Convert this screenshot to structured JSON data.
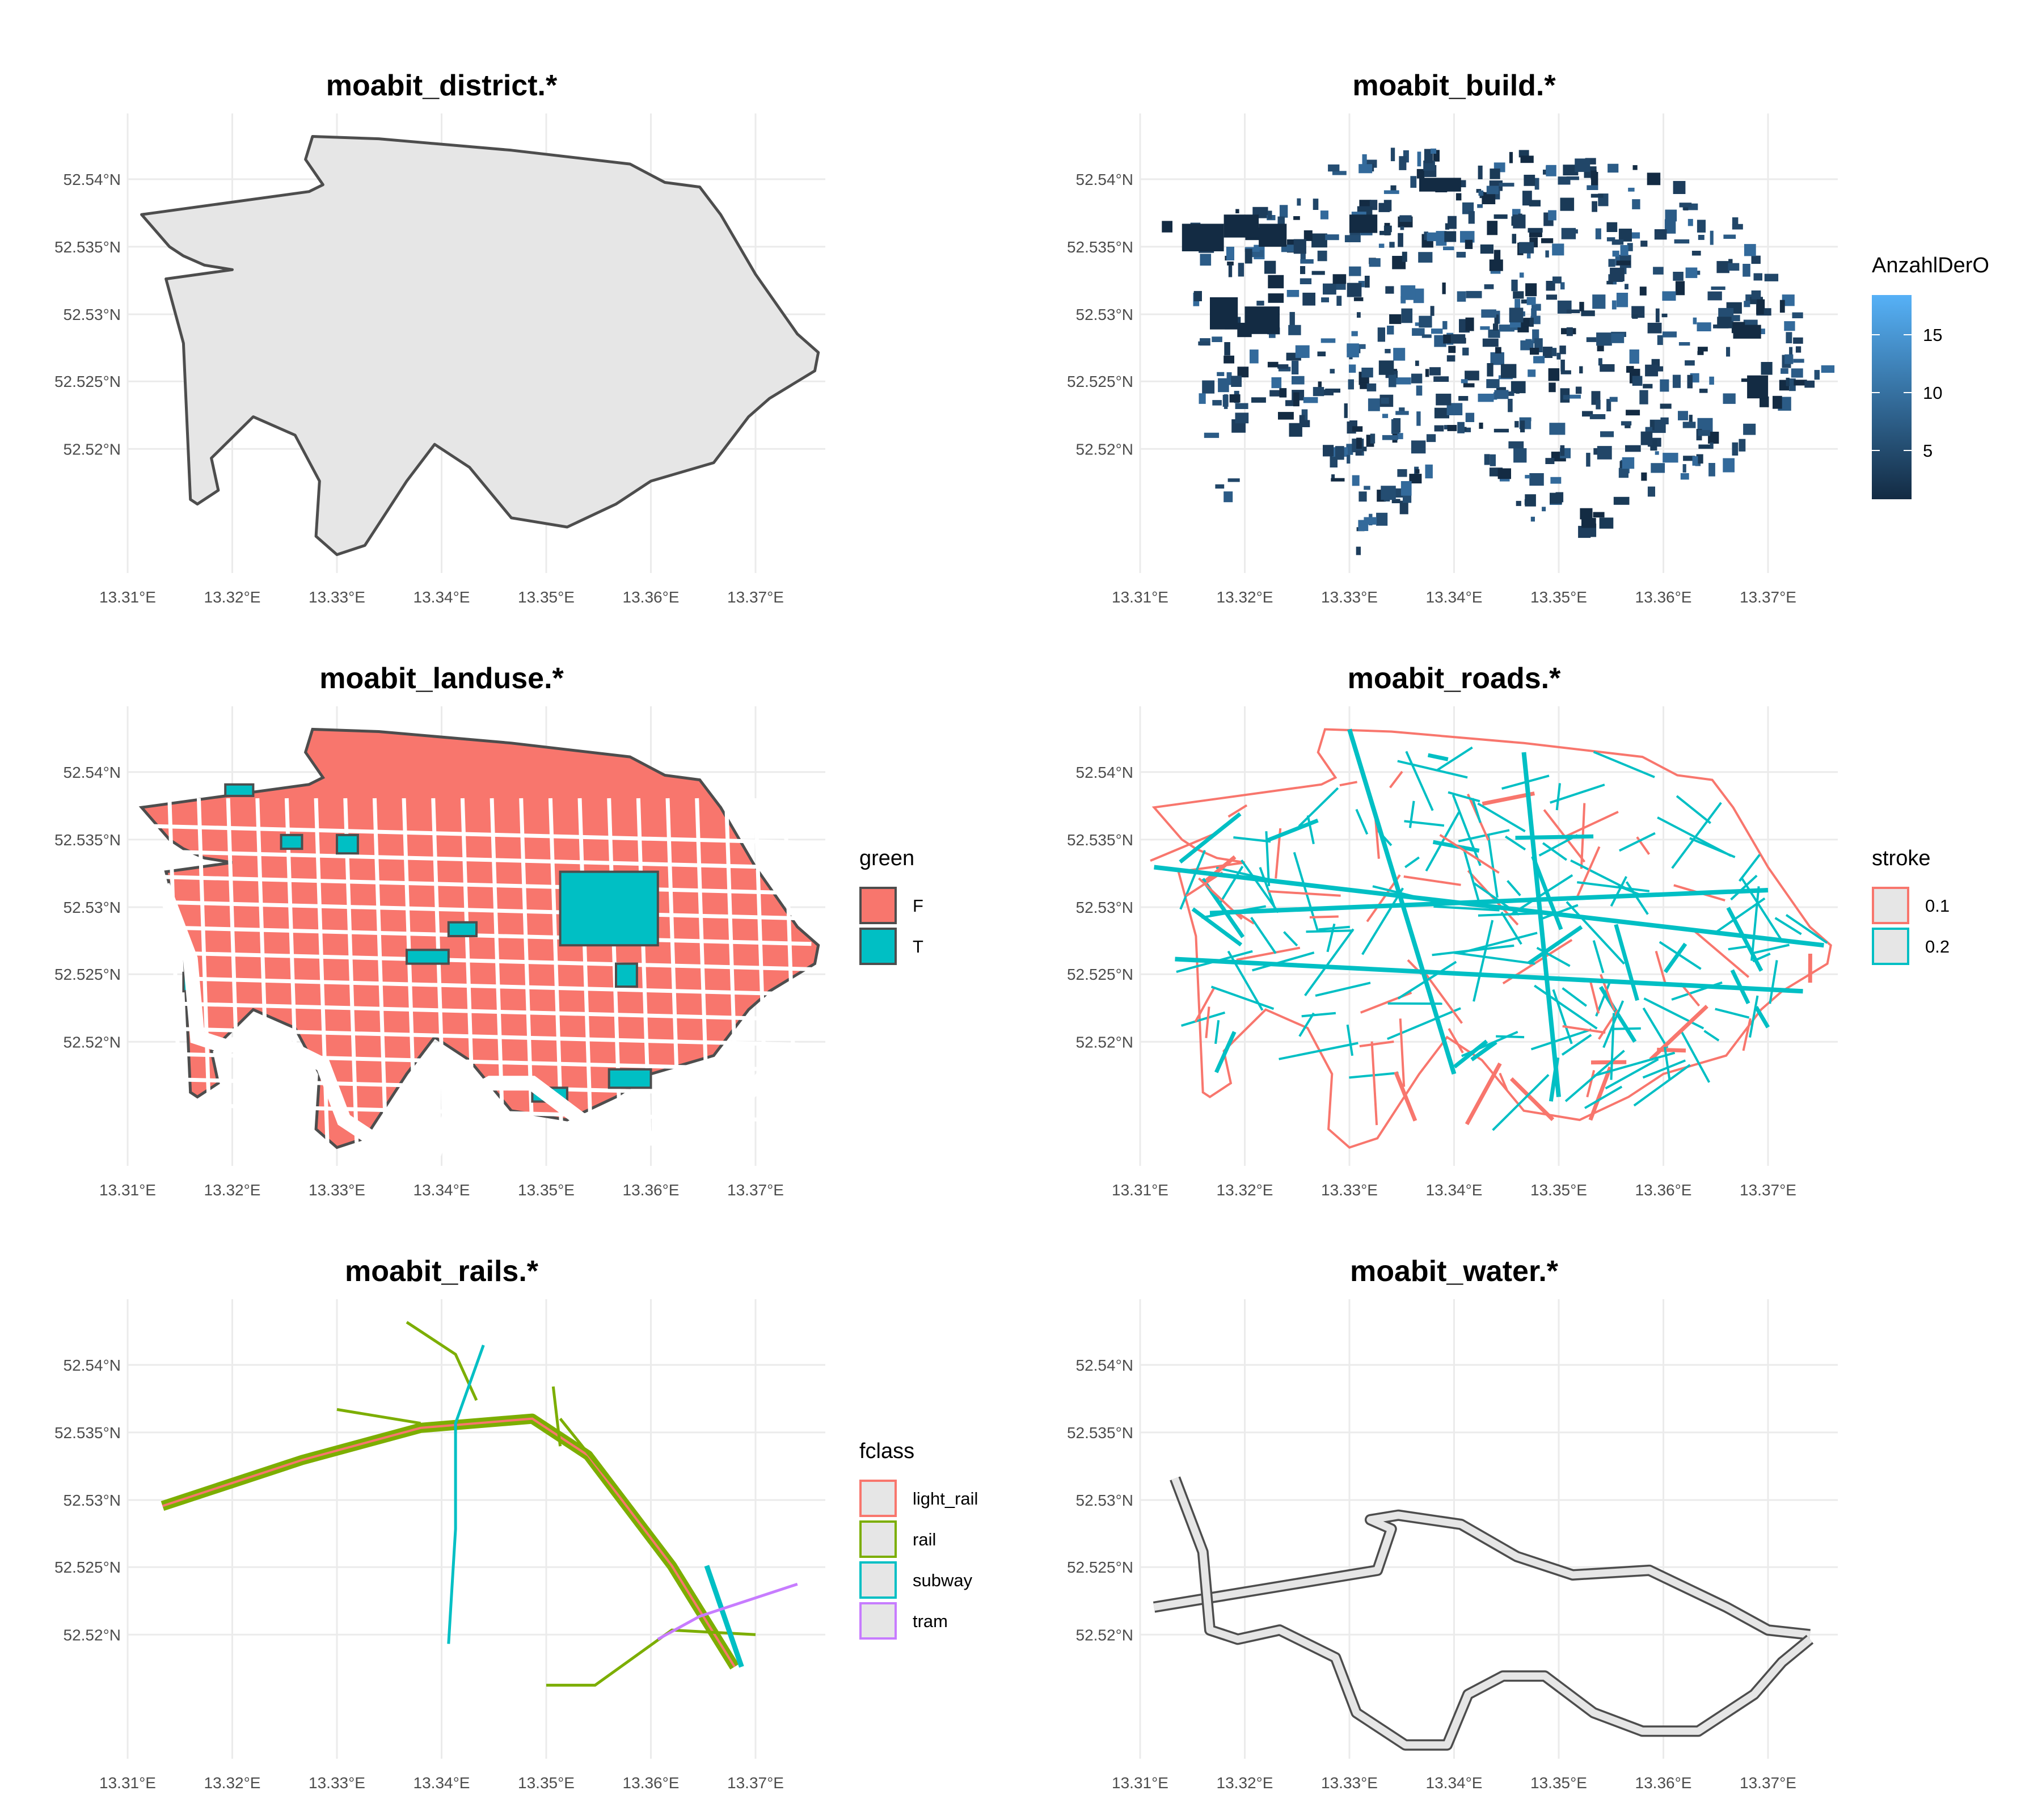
{
  "figure": {
    "panels": [
      {
        "title": "moabit_district.*",
        "x_ticks": [
          "13.31°E",
          "13.32°E",
          "13.33°E",
          "13.34°E",
          "13.35°E",
          "13.36°E",
          "13.37°E"
        ],
        "y_ticks": [
          "52.54°N",
          "52.535°N",
          "52.53°N",
          "52.525°N",
          "52.52°N"
        ],
        "layer": "district",
        "fill_color": "#e6e6e6",
        "stroke_color": "#4d4d4d",
        "legend": null
      },
      {
        "title": "moabit_build.*",
        "x_ticks": [
          "13.31°E",
          "13.32°E",
          "13.33°E",
          "13.34°E",
          "13.35°E",
          "13.36°E",
          "13.37°E"
        ],
        "y_ticks": [
          "52.54°N",
          "52.535°N",
          "52.53°N",
          "52.525°N",
          "52.52°N"
        ],
        "layer": "buildings",
        "fill_color": "#1d3d5c",
        "legend": {
          "type": "colorbar",
          "title": "AnzahlDerO",
          "labels": [
            "15",
            "10",
            "5"
          ],
          "colors": [
            "#56b1f7",
            "#132b43"
          ]
        }
      },
      {
        "title": "moabit_landuse.*",
        "x_ticks": [
          "13.31°E",
          "13.32°E",
          "13.33°E",
          "13.34°E",
          "13.35°E",
          "13.36°E",
          "13.37°E"
        ],
        "y_ticks": [
          "52.54°N",
          "52.535°N",
          "52.53°N",
          "52.525°N",
          "52.52°N"
        ],
        "layer": "landuse",
        "legend": {
          "type": "fill",
          "title": "green",
          "items": [
            {
              "label": "F",
              "color": "#f8766d"
            },
            {
              "label": "T",
              "color": "#00bfc4"
            }
          ]
        }
      },
      {
        "title": "moabit_roads.*",
        "x_ticks": [
          "13.31°E",
          "13.32°E",
          "13.33°E",
          "13.34°E",
          "13.35°E",
          "13.36°E",
          "13.37°E"
        ],
        "y_ticks": [
          "52.54°N",
          "52.535°N",
          "52.53°N",
          "52.525°N",
          "52.52°N"
        ],
        "layer": "roads",
        "legend": {
          "type": "line-box",
          "title": "stroke",
          "items": [
            {
              "label": "0.1",
              "color": "#f8766d"
            },
            {
              "label": "0.2",
              "color": "#00bfc4"
            }
          ]
        }
      },
      {
        "title": "moabit_rails.*",
        "x_ticks": [
          "13.31°E",
          "13.32°E",
          "13.33°E",
          "13.34°E",
          "13.35°E",
          "13.36°E",
          "13.37°E"
        ],
        "y_ticks": [
          "52.54°N",
          "52.535°N",
          "52.53°N",
          "52.525°N",
          "52.52°N"
        ],
        "layer": "rails",
        "legend": {
          "type": "line-box",
          "title": "fclass",
          "items": [
            {
              "label": "light_rail",
              "color": "#f8766d"
            },
            {
              "label": "rail",
              "color": "#7cae00"
            },
            {
              "label": "subway",
              "color": "#00bfc4"
            },
            {
              "label": "tram",
              "color": "#c77cff"
            }
          ]
        }
      },
      {
        "title": "moabit_water.*",
        "x_ticks": [
          "13.31°E",
          "13.32°E",
          "13.33°E",
          "13.34°E",
          "13.35°E",
          "13.36°E",
          "13.37°E"
        ],
        "y_ticks": [
          "52.54°N",
          "52.535°N",
          "52.53°N",
          "52.525°N",
          "52.52°N"
        ],
        "layer": "water",
        "fill_color": "#e6e6e6",
        "stroke_color": "#4d4d4d",
        "legend": null
      }
    ]
  }
}
